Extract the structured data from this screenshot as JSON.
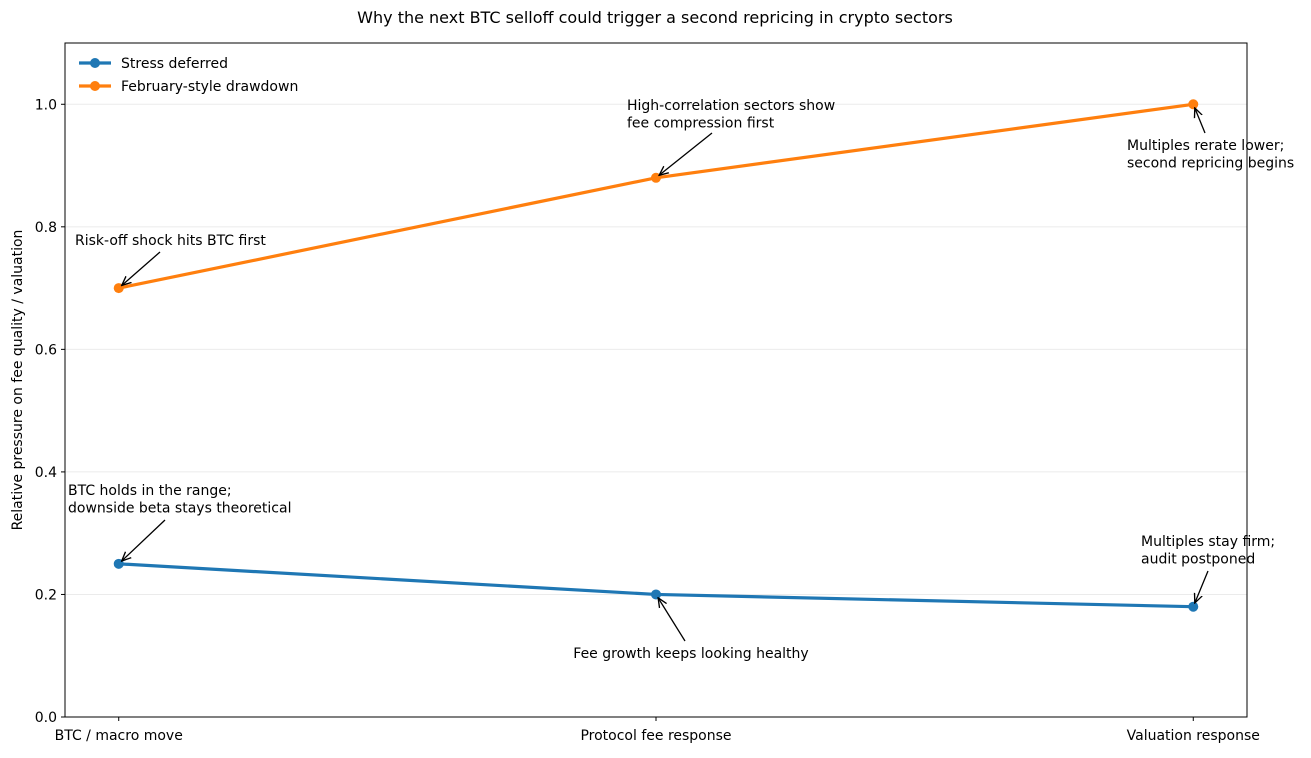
{
  "chart_data": {
    "type": "line",
    "title": "Why the next BTC selloff could trigger a second repricing in crypto sectors",
    "xlabel": "",
    "ylabel": "Relative pressure on fee quality / valuation",
    "categories": [
      "BTC / macro move",
      "Protocol fee response",
      "Valuation response"
    ],
    "ylim": [
      0,
      1.1
    ],
    "yticks": [
      0.0,
      0.2,
      0.4,
      0.6,
      0.8,
      1.0
    ],
    "ytick_labels": [
      "0.0",
      "0.2",
      "0.4",
      "0.6",
      "0.8",
      "1.0"
    ],
    "grid": "horizontal, faint",
    "legend_placement": "top-left",
    "series": [
      {
        "name": "Stress deferred",
        "color": "#1f77b4",
        "values": [
          0.25,
          0.2,
          0.18
        ]
      },
      {
        "name": "February-style drawdown",
        "color": "#ff7f0e",
        "values": [
          0.7,
          0.88,
          1.0
        ]
      }
    ],
    "annotations": [
      {
        "series": 1,
        "point": 0,
        "lines": [
          "Risk-off shock hits BTC first"
        ]
      },
      {
        "series": 1,
        "point": 1,
        "lines": [
          "High-correlation sectors show",
          "fee compression first"
        ]
      },
      {
        "series": 1,
        "point": 2,
        "lines": [
          "Multiples rerate lower;",
          "second repricing begins"
        ]
      },
      {
        "series": 0,
        "point": 0,
        "lines": [
          "BTC holds in the range;",
          "downside beta stays theoretical"
        ]
      },
      {
        "series": 0,
        "point": 1,
        "lines": [
          "Fee growth keeps looking healthy"
        ]
      },
      {
        "series": 0,
        "point": 2,
        "lines": [
          "Multiples stay firm;",
          "audit postponed"
        ]
      }
    ]
  }
}
